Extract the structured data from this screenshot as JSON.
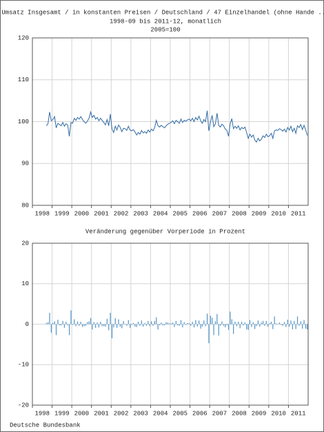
{
  "chart_data": [
    {
      "type": "line",
      "title_lines": [
        "Umsatz Insgesamt / in konstanten Preisen / Deutschland / 47 Einzelhandel (ohne Hande ...",
        "1998-09 bis 2011-12, monatlich",
        "2005=100"
      ],
      "color": "#2f6aa3",
      "grid": true,
      "xlim": [
        1998,
        2012
      ],
      "xticks": [
        1998,
        1999,
        2000,
        2001,
        2002,
        2003,
        2004,
        2005,
        2006,
        2007,
        2008,
        2009,
        2010,
        2011
      ],
      "ylim": [
        80,
        120
      ],
      "yticks": [
        80,
        90,
        100,
        110,
        120
      ],
      "x": [
        "1998-09",
        "1998-10",
        "1998-11",
        "1998-12",
        "1999-01",
        "1999-02",
        "1999-03",
        "1999-04",
        "1999-05",
        "1999-06",
        "1999-07",
        "1999-08",
        "1999-09",
        "1999-10",
        "1999-11",
        "1999-12",
        "2000-01",
        "2000-02",
        "2000-03",
        "2000-04",
        "2000-05",
        "2000-06",
        "2000-07",
        "2000-08",
        "2000-09",
        "2000-10",
        "2000-11",
        "2000-12",
        "2001-01",
        "2001-02",
        "2001-03",
        "2001-04",
        "2001-05",
        "2001-06",
        "2001-07",
        "2001-08",
        "2001-09",
        "2001-10",
        "2001-11",
        "2001-12",
        "2002-01",
        "2002-02",
        "2002-03",
        "2002-04",
        "2002-05",
        "2002-06",
        "2002-07",
        "2002-08",
        "2002-09",
        "2002-10",
        "2002-11",
        "2002-12",
        "2003-01",
        "2003-02",
        "2003-03",
        "2003-04",
        "2003-05",
        "2003-06",
        "2003-07",
        "2003-08",
        "2003-09",
        "2003-10",
        "2003-11",
        "2003-12",
        "2004-01",
        "2004-02",
        "2004-03",
        "2004-04",
        "2004-05",
        "2004-06",
        "2004-07",
        "2004-08",
        "2004-09",
        "2004-10",
        "2004-11",
        "2004-12",
        "2005-01",
        "2005-02",
        "2005-03",
        "2005-04",
        "2005-05",
        "2005-06",
        "2005-07",
        "2005-08",
        "2005-09",
        "2005-10",
        "2005-11",
        "2005-12",
        "2006-01",
        "2006-02",
        "2006-03",
        "2006-04",
        "2006-05",
        "2006-06",
        "2006-07",
        "2006-08",
        "2006-09",
        "2006-10",
        "2006-11",
        "2006-12",
        "2007-01",
        "2007-02",
        "2007-03",
        "2007-04",
        "2007-05",
        "2007-06",
        "2007-07",
        "2007-08",
        "2007-09",
        "2007-10",
        "2007-11",
        "2007-12",
        "2008-01",
        "2008-02",
        "2008-03",
        "2008-04",
        "2008-05",
        "2008-06",
        "2008-07",
        "2008-08",
        "2008-09",
        "2008-10",
        "2008-11",
        "2008-12",
        "2009-01",
        "2009-02",
        "2009-03",
        "2009-04",
        "2009-05",
        "2009-06",
        "2009-07",
        "2009-08",
        "2009-09",
        "2009-10",
        "2009-11",
        "2009-12",
        "2010-01",
        "2010-02",
        "2010-03",
        "2010-04",
        "2010-05",
        "2010-06",
        "2010-07",
        "2010-08",
        "2010-09",
        "2010-10",
        "2010-11",
        "2010-12",
        "2011-01",
        "2011-02",
        "2011-03",
        "2011-04",
        "2011-05",
        "2011-06",
        "2011-07",
        "2011-08",
        "2011-09",
        "2011-10",
        "2011-11",
        "2011-12"
      ],
      "values": [
        99.0,
        99.5,
        102.3,
        100.2,
        100.5,
        101.2,
        98.5,
        99.6,
        99.3,
        99.0,
        99.8,
        98.9,
        99.5,
        99.2,
        96.5,
        99.8,
        99.6,
        100.8,
        100.3,
        101.0,
        100.6,
        101.2,
        100.5,
        100.0,
        99.6,
        100.1,
        100.8,
        102.3,
        101.0,
        101.5,
        100.6,
        101.0,
        100.2,
        100.8,
        100.3,
        99.8,
        99.2,
        100.5,
        99.0,
        101.8,
        98.2,
        97.4,
        98.9,
        98.0,
        99.2,
        98.6,
        97.6,
        98.4,
        98.3,
        97.9,
        98.9,
        98.0,
        97.8,
        98.1,
        97.5,
        96.8,
        97.4,
        97.0,
        97.9,
        97.3,
        97.6,
        97.2,
        98.0,
        97.5,
        98.2,
        97.8,
        98.6,
        100.3,
        99.0,
        98.7,
        99.1,
        98.8,
        98.5,
        99.0,
        99.4,
        99.6,
        99.8,
        100.2,
        99.5,
        100.3,
        100.0,
        99.6,
        100.6,
        99.8,
        100.3,
        100.1,
        100.4,
        100.6,
        100.2,
        100.8,
        100.0,
        101.0,
        100.4,
        101.3,
        100.2,
        99.6,
        100.5,
        100.0,
        102.6,
        97.8,
        99.9,
        101.5,
        98.8,
        99.5,
        102.0,
        99.1,
        98.7,
        99.4,
        99.0,
        98.2,
        97.9,
        96.5,
        99.5,
        100.7,
        98.3,
        98.9,
        98.4,
        99.0,
        98.0,
        98.6,
        98.3,
        98.7,
        97.4,
        96.0,
        97.0,
        96.3,
        96.8,
        95.6,
        95.1,
        96.0,
        95.4,
        95.8,
        96.6,
        96.2,
        97.0,
        96.4,
        96.6,
        97.2,
        96.0,
        97.8,
        98.0,
        97.9,
        98.3,
        98.1,
        97.7,
        98.2,
        97.5,
        98.6,
        98.0,
        98.9,
        97.6,
        98.4,
        97.2,
        99.0,
        98.6,
        99.3,
        98.1,
        99.1,
        98.0,
        96.7
      ]
    },
    {
      "type": "bar",
      "title": "Veränderung gegenüber Vorperiode in Prozent",
      "color": "#4f93c8",
      "grid": true,
      "xlim": [
        1998,
        2012
      ],
      "xticks": [
        1998,
        1999,
        2000,
        2001,
        2002,
        2003,
        2004,
        2005,
        2006,
        2007,
        2008,
        2009,
        2010,
        2011
      ],
      "ylim": [
        -20,
        20
      ],
      "yticks": [
        -20,
        -10,
        0,
        10,
        20
      ],
      "x": [
        "1998-09",
        "1998-10",
        "1998-11",
        "1998-12",
        "1999-01",
        "1999-02",
        "1999-03",
        "1999-04",
        "1999-05",
        "1999-06",
        "1999-07",
        "1999-08",
        "1999-09",
        "1999-10",
        "1999-11",
        "1999-12",
        "2000-01",
        "2000-02",
        "2000-03",
        "2000-04",
        "2000-05",
        "2000-06",
        "2000-07",
        "2000-08",
        "2000-09",
        "2000-10",
        "2000-11",
        "2000-12",
        "2001-01",
        "2001-02",
        "2001-03",
        "2001-04",
        "2001-05",
        "2001-06",
        "2001-07",
        "2001-08",
        "2001-09",
        "2001-10",
        "2001-11",
        "2001-12",
        "2002-01",
        "2002-02",
        "2002-03",
        "2002-04",
        "2002-05",
        "2002-06",
        "2002-07",
        "2002-08",
        "2002-09",
        "2002-10",
        "2002-11",
        "2002-12",
        "2003-01",
        "2003-02",
        "2003-03",
        "2003-04",
        "2003-05",
        "2003-06",
        "2003-07",
        "2003-08",
        "2003-09",
        "2003-10",
        "2003-11",
        "2003-12",
        "2004-01",
        "2004-02",
        "2004-03",
        "2004-04",
        "2004-05",
        "2004-06",
        "2004-07",
        "2004-08",
        "2004-09",
        "2004-10",
        "2004-11",
        "2004-12",
        "2005-01",
        "2005-02",
        "2005-03",
        "2005-04",
        "2005-05",
        "2005-06",
        "2005-07",
        "2005-08",
        "2005-09",
        "2005-10",
        "2005-11",
        "2005-12",
        "2006-01",
        "2006-02",
        "2006-03",
        "2006-04",
        "2006-05",
        "2006-06",
        "2006-07",
        "2006-08",
        "2006-09",
        "2006-10",
        "2006-11",
        "2006-12",
        "2007-01",
        "2007-02",
        "2007-03",
        "2007-04",
        "2007-05",
        "2007-06",
        "2007-07",
        "2007-08",
        "2007-09",
        "2007-10",
        "2007-11",
        "2007-12",
        "2008-01",
        "2008-02",
        "2008-03",
        "2008-04",
        "2008-05",
        "2008-06",
        "2008-07",
        "2008-08",
        "2008-09",
        "2008-10",
        "2008-11",
        "2008-12",
        "2009-01",
        "2009-02",
        "2009-03",
        "2009-04",
        "2009-05",
        "2009-06",
        "2009-07",
        "2009-08",
        "2009-09",
        "2009-10",
        "2009-11",
        "2009-12",
        "2010-01",
        "2010-02",
        "2010-03",
        "2010-04",
        "2010-05",
        "2010-06",
        "2010-07",
        "2010-08",
        "2010-09",
        "2010-10",
        "2010-11",
        "2010-12",
        "2011-01",
        "2011-02",
        "2011-03",
        "2011-04",
        "2011-05",
        "2011-06",
        "2011-07",
        "2011-08",
        "2011-09",
        "2011-10",
        "2011-11",
        "2011-12"
      ],
      "values": [
        0.3,
        0.5,
        2.8,
        -2.1,
        0.3,
        0.7,
        -2.7,
        1.1,
        -0.3,
        -0.3,
        0.8,
        -0.9,
        0.6,
        -0.3,
        -2.7,
        3.4,
        -0.2,
        1.2,
        -0.5,
        0.7,
        -0.4,
        0.6,
        -0.7,
        -0.5,
        -0.4,
        0.5,
        0.7,
        1.5,
        -1.3,
        0.5,
        -0.9,
        0.4,
        -0.8,
        0.6,
        -0.5,
        -0.5,
        -0.6,
        1.3,
        -1.5,
        2.8,
        -3.5,
        -0.8,
        1.5,
        -0.9,
        1.2,
        -0.6,
        -1.0,
        0.8,
        -0.1,
        -0.4,
        1.0,
        -0.9,
        -0.2,
        0.3,
        -0.6,
        -0.7,
        0.6,
        -0.4,
        0.9,
        -0.6,
        0.3,
        -0.4,
        0.8,
        -0.5,
        0.7,
        -0.4,
        0.8,
        1.7,
        -1.3,
        -0.3,
        0.4,
        -0.3,
        -0.3,
        0.5,
        0.4,
        0.2,
        0.2,
        0.4,
        -0.7,
        0.8,
        -0.3,
        -0.4,
        1.0,
        -0.8,
        0.5,
        -0.2,
        0.3,
        0.2,
        -0.4,
        0.6,
        -0.8,
        1.0,
        -0.6,
        0.9,
        -1.1,
        -0.6,
        0.9,
        -0.5,
        2.6,
        -4.7,
        2.1,
        1.6,
        -2.7,
        0.7,
        2.5,
        -2.8,
        -0.4,
        0.7,
        -0.4,
        -0.8,
        -0.3,
        -1.4,
        3.1,
        1.2,
        -2.4,
        0.6,
        -0.5,
        0.6,
        -1.0,
        0.6,
        -0.3,
        0.4,
        -1.3,
        -1.4,
        1.0,
        -0.7,
        0.5,
        -1.2,
        -0.5,
        0.9,
        -0.6,
        0.4,
        0.8,
        -0.4,
        0.8,
        -0.6,
        0.2,
        0.6,
        -1.2,
        1.9,
        0.2,
        -0.1,
        0.4,
        -0.2,
        -0.4,
        0.5,
        -0.7,
        1.1,
        -0.6,
        0.9,
        -1.3,
        0.8,
        -1.2,
        1.9,
        -0.4,
        0.7,
        -1.1,
        1.0,
        -1.1,
        -1.3
      ]
    }
  ],
  "footer": "Deutsche Bundesbank"
}
